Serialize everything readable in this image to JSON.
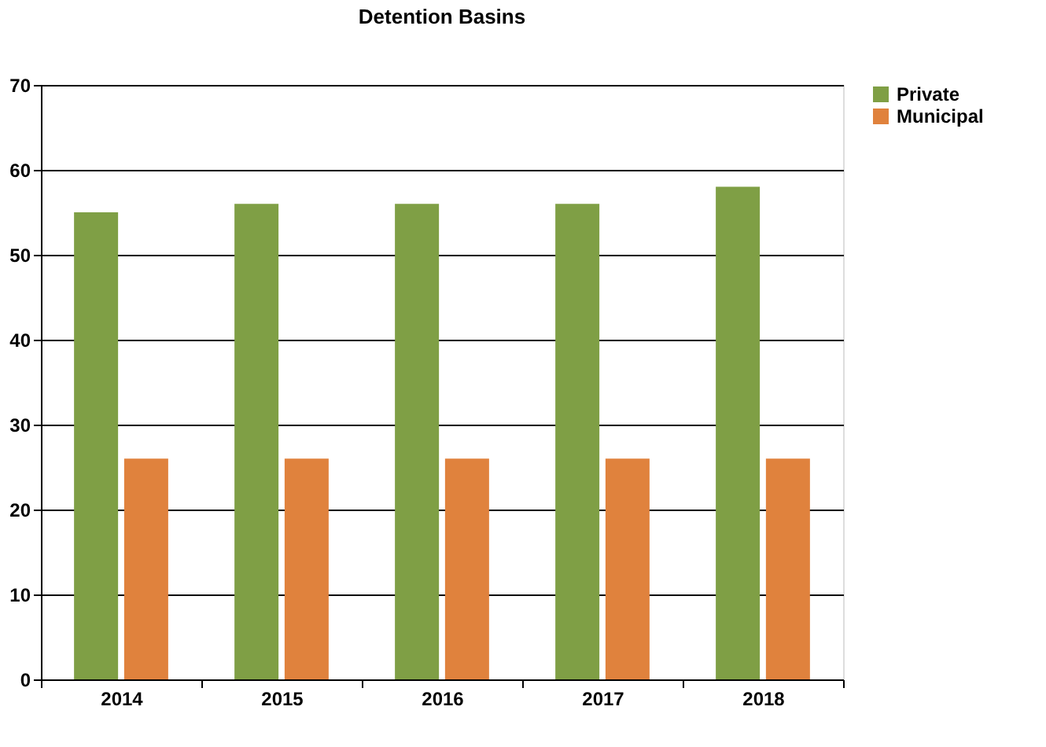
{
  "chart_data": {
    "type": "bar",
    "title": "Detention Basins",
    "categories": [
      "2014",
      "2015",
      "2016",
      "2017",
      "2018"
    ],
    "series": [
      {
        "name": "Private",
        "color": "#7f9f45",
        "values": [
          55,
          56,
          56,
          56,
          58
        ]
      },
      {
        "name": "Municipal",
        "color": "#e0823d",
        "values": [
          26,
          26,
          26,
          26,
          26
        ]
      }
    ],
    "ylim": [
      0,
      70
    ],
    "yticks": [
      0,
      10,
      20,
      30,
      40,
      50,
      60,
      70
    ],
    "grid": "y",
    "legend": "right"
  }
}
